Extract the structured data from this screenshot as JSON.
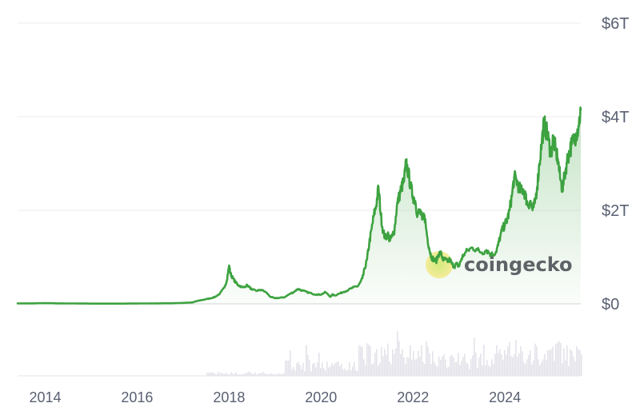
{
  "chart_data": {
    "type": "area",
    "y_ticks": [
      "$6T",
      "$4T",
      "$2T",
      "$0"
    ],
    "y_tick_values": [
      6,
      4,
      2,
      0
    ],
    "ylim": [
      0,
      6
    ],
    "y_unit": "trillion USD",
    "x_ticks": [
      "2014",
      "2016",
      "2018",
      "2020",
      "2022",
      "2024"
    ],
    "x_tick_values": [
      2014,
      2016,
      2018,
      2020,
      2022,
      2024
    ],
    "xlim": [
      2013.4,
      2025.65
    ],
    "grid": true,
    "line_color": "#3da240",
    "fill_color": "#3da240",
    "volume_color": "#e3e3ea",
    "series": [
      {
        "x": [
          2013.4,
          2013.7,
          2014.0,
          2014.3,
          2014.6,
          2014.9,
          2015.2,
          2015.5,
          2015.8,
          2016.1,
          2016.4,
          2016.7,
          2017.0,
          2017.2,
          2017.3,
          2017.4,
          2017.5,
          2017.6,
          2017.7,
          2017.8,
          2017.9,
          2017.95,
          2018.0,
          2018.03,
          2018.08,
          2018.15,
          2018.2,
          2018.3,
          2018.4,
          2018.5,
          2018.6,
          2018.7,
          2018.8,
          2018.9,
          2019.0,
          2019.1,
          2019.2,
          2019.3,
          2019.4,
          2019.5,
          2019.6,
          2019.7,
          2019.8,
          2019.9,
          2020.0,
          2020.1,
          2020.2,
          2020.25,
          2020.3,
          2020.4,
          2020.5,
          2020.6,
          2020.7,
          2020.8,
          2020.85,
          2020.9,
          2020.95,
          2021.0,
          2021.05,
          2021.1,
          2021.15,
          2021.2,
          2021.25,
          2021.3,
          2021.35,
          2021.4,
          2021.45,
          2021.5,
          2021.55,
          2021.6,
          2021.65,
          2021.7,
          2021.75,
          2021.8,
          2021.85,
          2021.9,
          2021.95,
          2022.0,
          2022.05,
          2022.1,
          2022.15,
          2022.2,
          2022.25,
          2022.3,
          2022.35,
          2022.4,
          2022.45,
          2022.5,
          2022.55,
          2022.6,
          2022.65,
          2022.7,
          2022.75,
          2022.8,
          2022.85,
          2022.9,
          2022.95,
          2023.0,
          2023.05,
          2023.1,
          2023.2,
          2023.3,
          2023.4,
          2023.5,
          2023.6,
          2023.7,
          2023.8,
          2023.85,
          2023.9,
          2023.95,
          2024.0,
          2024.05,
          2024.1,
          2024.15,
          2024.2,
          2024.25,
          2024.3,
          2024.35,
          2024.4,
          2024.45,
          2024.5,
          2024.55,
          2024.6,
          2024.65,
          2024.7,
          2024.75,
          2024.8,
          2024.85,
          2024.9,
          2024.95,
          2025.0,
          2025.05,
          2025.1,
          2025.15,
          2025.2,
          2025.25,
          2025.3,
          2025.35,
          2025.4,
          2025.45,
          2025.5,
          2025.55,
          2025.6,
          2025.65
        ],
        "y": [
          0.01,
          0.01,
          0.015,
          0.01,
          0.008,
          0.006,
          0.005,
          0.005,
          0.006,
          0.008,
          0.01,
          0.012,
          0.02,
          0.03,
          0.06,
          0.08,
          0.1,
          0.12,
          0.15,
          0.22,
          0.35,
          0.5,
          0.82,
          0.65,
          0.55,
          0.45,
          0.4,
          0.35,
          0.4,
          0.3,
          0.28,
          0.3,
          0.25,
          0.15,
          0.12,
          0.13,
          0.14,
          0.2,
          0.25,
          0.32,
          0.28,
          0.25,
          0.22,
          0.2,
          0.2,
          0.25,
          0.15,
          0.2,
          0.18,
          0.22,
          0.26,
          0.3,
          0.35,
          0.38,
          0.45,
          0.55,
          0.75,
          0.95,
          1.3,
          1.6,
          1.9,
          2.1,
          2.5,
          1.9,
          1.55,
          1.4,
          1.5,
          1.35,
          1.45,
          1.6,
          2.1,
          2.3,
          2.5,
          2.6,
          3.0,
          2.8,
          2.5,
          2.3,
          2.2,
          1.9,
          2.0,
          1.8,
          1.9,
          1.5,
          1.2,
          1.0,
          0.95,
          0.9,
          1.05,
          1.1,
          0.95,
          0.95,
          0.9,
          0.95,
          0.85,
          0.8,
          0.85,
          0.8,
          0.95,
          1.05,
          1.15,
          1.2,
          1.15,
          1.1,
          1.15,
          1.05,
          1.1,
          1.25,
          1.45,
          1.6,
          1.7,
          1.8,
          2.0,
          2.3,
          2.7,
          2.65,
          2.5,
          2.4,
          2.45,
          2.3,
          2.1,
          2.2,
          2.0,
          2.15,
          2.5,
          3.0,
          3.45,
          3.85,
          3.7,
          3.5,
          3.2,
          3.55,
          3.3,
          3.1,
          2.7,
          2.45,
          2.75,
          3.05,
          3.25,
          3.4,
          3.5,
          3.65,
          3.8,
          4.15
        ]
      }
    ]
  },
  "watermark": {
    "text": "coingecko"
  }
}
